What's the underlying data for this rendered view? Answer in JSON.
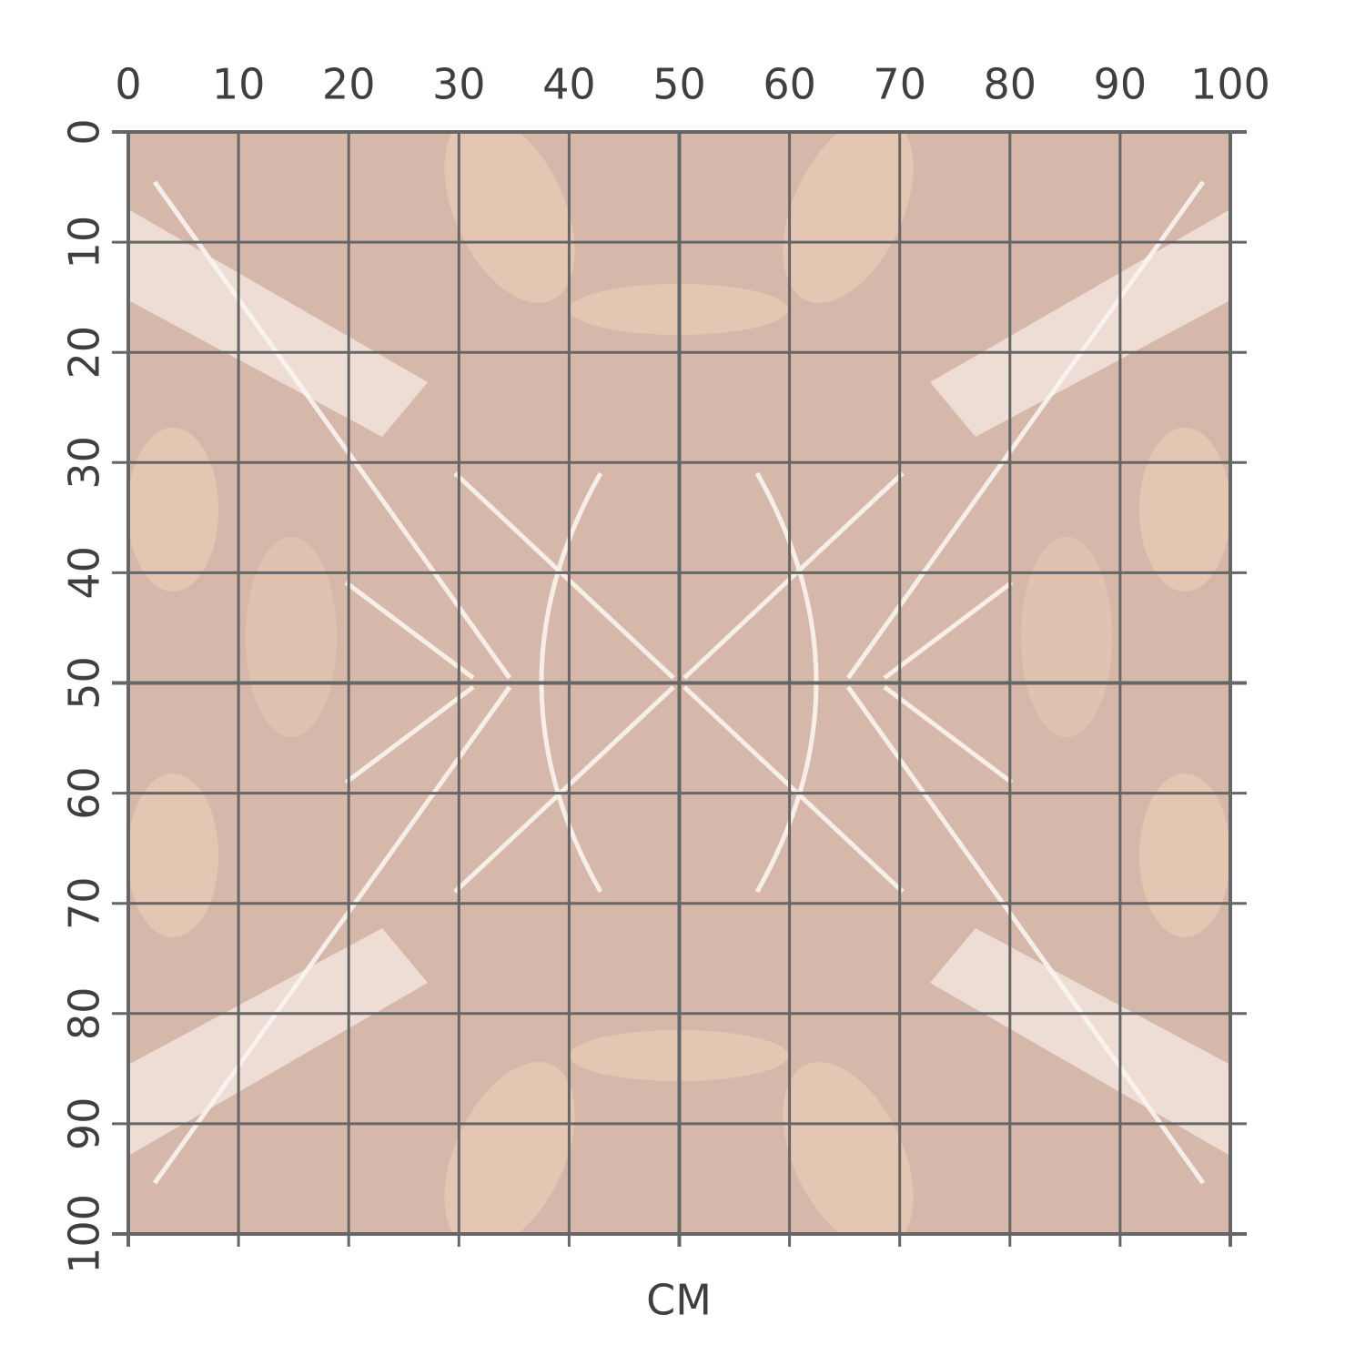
{
  "ruler": {
    "range": [
      0,
      100
    ],
    "x_ticks": [
      0,
      10,
      20,
      30,
      40,
      50,
      60,
      70,
      80,
      90,
      100
    ],
    "y_ticks": [
      0,
      10,
      20,
      30,
      40,
      50,
      60,
      70,
      80,
      90,
      100
    ],
    "unit_label": "CM"
  }
}
